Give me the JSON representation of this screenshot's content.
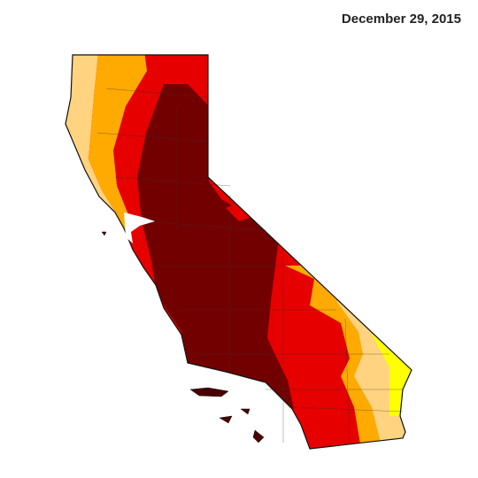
{
  "title": "December 29, 2015"
}
